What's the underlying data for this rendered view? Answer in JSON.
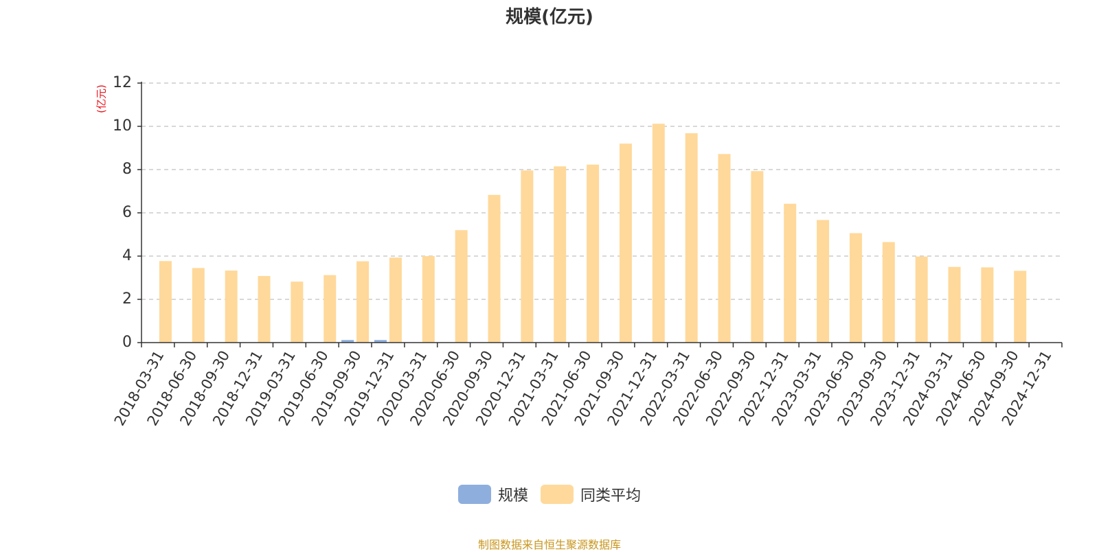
{
  "chart_data": {
    "type": "bar",
    "title": "规模(亿元)",
    "ylabel": "(亿元)",
    "xlabel": "",
    "ylim": [
      0,
      12
    ],
    "yticks": [
      0,
      2,
      4,
      6,
      8,
      10,
      12
    ],
    "grid": "horizontal-dashed",
    "legend_position": "bottom-center",
    "categories": [
      "2018-03-31",
      "2018-06-30",
      "2018-09-30",
      "2018-12-31",
      "2019-03-31",
      "2019-06-30",
      "2019-09-30",
      "2019-12-31",
      "2020-03-31",
      "2020-06-30",
      "2020-09-30",
      "2020-12-31",
      "2021-03-31",
      "2021-06-30",
      "2021-09-30",
      "2021-12-31",
      "2022-03-31",
      "2022-06-30",
      "2022-09-30",
      "2022-12-31",
      "2023-03-31",
      "2023-06-30",
      "2023-09-30",
      "2023-12-31",
      "2024-03-31",
      "2024-06-30",
      "2024-09-30",
      "2024-12-31"
    ],
    "series": [
      {
        "name": "规模",
        "color": "#8eaedd",
        "values": [
          null,
          null,
          null,
          null,
          null,
          null,
          0.12,
          0.12,
          null,
          null,
          null,
          null,
          null,
          null,
          null,
          null,
          null,
          null,
          null,
          null,
          null,
          null,
          null,
          null,
          null,
          null,
          null,
          null
        ]
      },
      {
        "name": "同类平均",
        "color": "#ffd99b",
        "values": [
          3.77,
          3.45,
          3.33,
          3.08,
          2.82,
          3.12,
          3.76,
          3.93,
          4.0,
          5.2,
          6.83,
          7.96,
          8.15,
          8.23,
          9.2,
          10.12,
          9.68,
          8.72,
          7.93,
          6.42,
          5.67,
          5.06,
          4.65,
          3.98,
          3.5,
          3.48,
          3.32,
          null
        ]
      }
    ]
  },
  "footer": {
    "source": "制图数据来自恒生聚源数据库"
  }
}
